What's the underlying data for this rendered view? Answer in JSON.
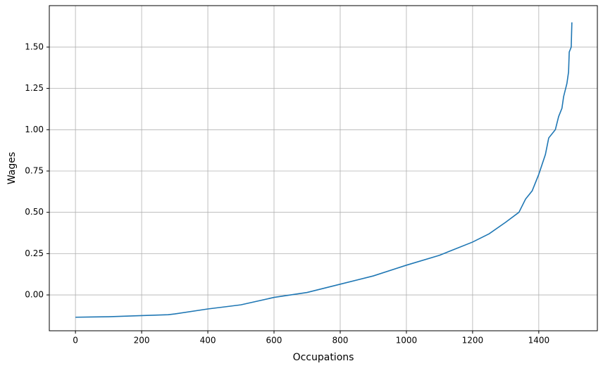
{
  "chart_data": {
    "type": "line",
    "xlabel": "Occupations",
    "ylabel": "Wages",
    "x": [
      0,
      100,
      200,
      280,
      300,
      400,
      460,
      500,
      600,
      700,
      800,
      900,
      1000,
      1100,
      1200,
      1250,
      1300,
      1340,
      1360,
      1380,
      1400,
      1420,
      1430,
      1450,
      1460,
      1470,
      1475,
      1485,
      1490,
      1492,
      1498,
      1500
    ],
    "series": [
      {
        "name": "Wages",
        "color": "#1f77b4",
        "values": [
          -0.135,
          -0.132,
          -0.125,
          -0.12,
          -0.115,
          -0.085,
          -0.07,
          -0.06,
          -0.015,
          0.015,
          0.065,
          0.115,
          0.18,
          0.24,
          0.32,
          0.37,
          0.44,
          0.5,
          0.58,
          0.63,
          0.73,
          0.85,
          0.95,
          1.0,
          1.08,
          1.13,
          1.2,
          1.28,
          1.35,
          1.47,
          1.5,
          1.65
        ]
      }
    ],
    "xlim": [
      -79,
      1577
    ],
    "ylim": [
      -0.217,
      1.751
    ],
    "xticks": [
      0,
      200,
      400,
      600,
      800,
      1000,
      1200,
      1400
    ],
    "yticks": [
      {
        "value": 0,
        "label": "0.00"
      },
      {
        "value": 0.25,
        "label": "0.25"
      },
      {
        "value": 0.5,
        "label": "0.50"
      },
      {
        "value": 0.75,
        "label": "0.75"
      },
      {
        "value": 1,
        "label": "1.00"
      },
      {
        "value": 1.25,
        "label": "1.25"
      },
      {
        "value": 1.5,
        "label": "1.50"
      }
    ],
    "grid": true
  }
}
